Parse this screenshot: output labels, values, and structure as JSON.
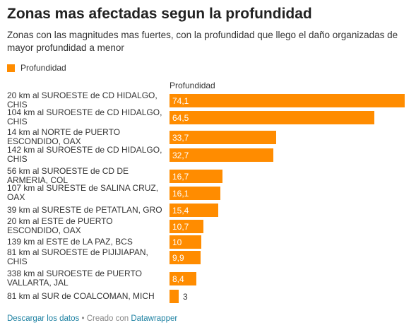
{
  "chart_data": {
    "type": "bar",
    "orientation": "horizontal",
    "title": "Zonas mas afectadas segun la profundidad",
    "subtitle": "Zonas con las magnitudes mas fuertes, con la profundidad que llego el daño organizadas de mayor profundidad a menor",
    "legend": [
      "Profundidad"
    ],
    "column_header": "Profundidad",
    "categories": [
      "20 km al SUROESTE de CD HIDALGO, CHIS",
      "104 km al SUROESTE de CD HIDALGO, CHIS",
      "14 km al NORTE de PUERTO ESCONDIDO, OAX",
      "142 km al SUROESTE de CD HIDALGO, CHIS",
      "56 km al SUROESTE de CD DE ARMERIA, COL",
      "107 km al SURESTE de SALINA CRUZ, OAX",
      "39 km al SURESTE de PETATLAN, GRO",
      "20 km al ESTE de PUERTO ESCONDIDO, OAX",
      "139 km al ESTE de LA PAZ, BCS",
      "81 km al SUROESTE de PIJIJIAPAN, CHIS",
      "338 km al SUROESTE de PUERTO VALLARTA, JAL",
      "81 km al SUR de COALCOMAN, MICH"
    ],
    "series": [
      {
        "name": "Profundidad",
        "values": [
          74.1,
          64.5,
          33.7,
          32.7,
          16.7,
          16.1,
          15.4,
          10.7,
          10,
          9.9,
          8.4,
          3
        ],
        "labels": [
          "74,1",
          "64,5",
          "33,7",
          "32,7",
          "16,7",
          "16,1",
          "15,4",
          "10,7",
          "10",
          "9,9",
          "8,4",
          "3"
        ]
      }
    ],
    "xlim": [
      0,
      74.1
    ],
    "color": "#ff8c00"
  },
  "footer": {
    "download_label": "Descargar los datos",
    "separator": " • Creado con ",
    "tool_label": "Datawrapper"
  }
}
